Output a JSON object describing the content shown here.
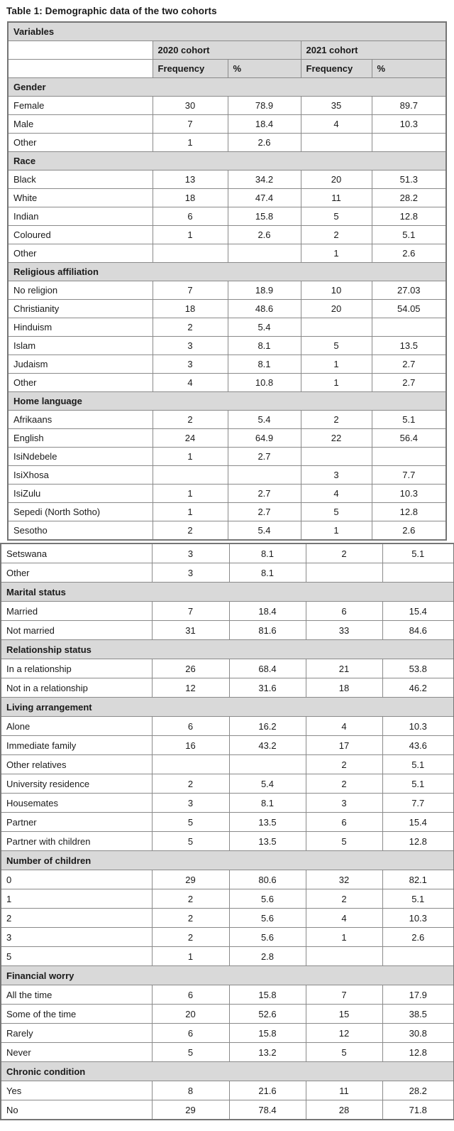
{
  "title": "Table 1: Demographic data of the two cohorts",
  "colors": {
    "section_fill": "#d9d9d9",
    "grid_border": "#8a8a8a",
    "text": "#1a1a1a"
  },
  "table": {
    "parts": [
      {
        "rows": [
          {
            "t": "section",
            "label": "Variables"
          },
          {
            "t": "cohorts",
            "cells": [
              "",
              "2020 cohort",
              "2021 cohort"
            ]
          },
          {
            "t": "stats",
            "cells": [
              "",
              "Frequency",
              "%",
              "Frequency",
              "%"
            ]
          },
          {
            "t": "section",
            "label": "Gender"
          },
          {
            "t": "data",
            "label": "Female",
            "values": [
              "30",
              "78.9",
              "35",
              "89.7"
            ]
          },
          {
            "t": "data",
            "label": "Male",
            "values": [
              "7",
              "18.4",
              "4",
              "10.3"
            ]
          },
          {
            "t": "data",
            "label": "Other",
            "values": [
              "1",
              "2.6",
              "",
              ""
            ]
          },
          {
            "t": "section",
            "label": "Race"
          },
          {
            "t": "data",
            "label": "Black",
            "values": [
              "13",
              "34.2",
              "20",
              "51.3"
            ]
          },
          {
            "t": "data",
            "label": "White",
            "values": [
              "18",
              "47.4",
              "11",
              "28.2"
            ]
          },
          {
            "t": "data",
            "label": "Indian",
            "values": [
              "6",
              "15.8",
              "5",
              "12.8"
            ]
          },
          {
            "t": "data",
            "label": "Coloured",
            "values": [
              "1",
              "2.6",
              "2",
              "5.1"
            ]
          },
          {
            "t": "data",
            "label": "Other",
            "values": [
              "",
              "",
              "1",
              "2.6"
            ]
          },
          {
            "t": "section",
            "label": "Religious affiliation"
          },
          {
            "t": "data",
            "label": "No religion",
            "values": [
              "7",
              "18.9",
              "10",
              "27.03"
            ]
          },
          {
            "t": "data",
            "label": "Christianity",
            "values": [
              "18",
              "48.6",
              "20",
              "54.05"
            ]
          },
          {
            "t": "data",
            "label": "Hinduism",
            "values": [
              "2",
              "5.4",
              "",
              ""
            ]
          },
          {
            "t": "data",
            "label": "Islam",
            "values": [
              "3",
              "8.1",
              "5",
              "13.5"
            ]
          },
          {
            "t": "data",
            "label": "Judaism",
            "values": [
              "3",
              "8.1",
              "1",
              "2.7"
            ]
          },
          {
            "t": "data",
            "label": "Other",
            "values": [
              "4",
              "10.8",
              "1",
              "2.7"
            ]
          },
          {
            "t": "section",
            "label": "Home language"
          },
          {
            "t": "data",
            "label": "Afrikaans",
            "values": [
              "2",
              "5.4",
              "2",
              "5.1"
            ]
          },
          {
            "t": "data",
            "label": "English",
            "values": [
              "24",
              "64.9",
              "22",
              "56.4"
            ]
          },
          {
            "t": "data",
            "label": "IsiNdebele",
            "values": [
              "1",
              "2.7",
              "",
              ""
            ]
          },
          {
            "t": "data",
            "label": "IsiXhosa",
            "values": [
              "",
              "",
              "3",
              "7.7"
            ]
          },
          {
            "t": "data",
            "label": "IsiZulu",
            "values": [
              "1",
              "2.7",
              "4",
              "10.3"
            ]
          },
          {
            "t": "data",
            "label": "Sepedi (North Sotho)",
            "values": [
              "1",
              "2.7",
              "5",
              "12.8"
            ]
          },
          {
            "t": "data",
            "label": "Sesotho",
            "values": [
              "2",
              "5.4",
              "1",
              "2.6"
            ]
          }
        ]
      },
      {
        "rows": [
          {
            "t": "data",
            "label": "Setswana",
            "values": [
              "3",
              "8.1",
              "2",
              "5.1"
            ]
          },
          {
            "t": "data",
            "label": "Other",
            "values": [
              "3",
              "8.1",
              "",
              ""
            ]
          },
          {
            "t": "section",
            "label": "Marital status"
          },
          {
            "t": "data",
            "label": "Married",
            "values": [
              "7",
              "18.4",
              "6",
              "15.4"
            ]
          },
          {
            "t": "data",
            "label": "Not married",
            "values": [
              "31",
              "81.6",
              "33",
              "84.6"
            ]
          },
          {
            "t": "section",
            "label": "Relationship status"
          },
          {
            "t": "data",
            "label": "In a relationship",
            "values": [
              "26",
              "68.4",
              "21",
              "53.8"
            ]
          },
          {
            "t": "data",
            "label": "Not in a relationship",
            "values": [
              "12",
              "31.6",
              "18",
              "46.2"
            ]
          },
          {
            "t": "section",
            "label": "Living arrangement"
          },
          {
            "t": "data",
            "label": "Alone",
            "values": [
              "6",
              "16.2",
              "4",
              "10.3"
            ]
          },
          {
            "t": "data",
            "label": "Immediate family",
            "values": [
              "16",
              "43.2",
              "17",
              "43.6"
            ]
          },
          {
            "t": "data",
            "label": "Other relatives",
            "values": [
              "",
              "",
              "2",
              "5.1"
            ]
          },
          {
            "t": "data",
            "label": "University residence",
            "values": [
              "2",
              "5.4",
              "2",
              "5.1"
            ]
          },
          {
            "t": "data",
            "label": "Housemates",
            "values": [
              "3",
              "8.1",
              "3",
              "7.7"
            ]
          },
          {
            "t": "data",
            "label": "Partner",
            "values": [
              "5",
              "13.5",
              "6",
              "15.4"
            ]
          },
          {
            "t": "data",
            "label": "Partner with children",
            "values": [
              "5",
              "13.5",
              "5",
              "12.8"
            ]
          },
          {
            "t": "section",
            "label": "Number of children"
          },
          {
            "t": "data",
            "label": "0",
            "values": [
              "29",
              "80.6",
              "32",
              "82.1"
            ]
          },
          {
            "t": "data",
            "label": "1",
            "values": [
              "2",
              "5.6",
              "2",
              "5.1"
            ]
          },
          {
            "t": "data",
            "label": "2",
            "values": [
              "2",
              "5.6",
              "4",
              "10.3"
            ]
          },
          {
            "t": "data",
            "label": "3",
            "values": [
              "2",
              "5.6",
              "1",
              "2.6"
            ]
          },
          {
            "t": "data",
            "label": "5",
            "values": [
              "1",
              "2.8",
              "",
              ""
            ]
          },
          {
            "t": "section",
            "label": "Financial worry"
          },
          {
            "t": "data",
            "label": "All the time",
            "values": [
              "6",
              "15.8",
              "7",
              "17.9"
            ]
          },
          {
            "t": "data",
            "label": "Some of the time",
            "values": [
              "20",
              "52.6",
              "15",
              "38.5"
            ]
          },
          {
            "t": "data",
            "label": "Rarely",
            "values": [
              "6",
              "15.8",
              "12",
              "30.8"
            ]
          },
          {
            "t": "data",
            "label": "Never",
            "values": [
              "5",
              "13.2",
              "5",
              "12.8"
            ]
          },
          {
            "t": "section",
            "label": "Chronic condition"
          },
          {
            "t": "data",
            "label": "Yes",
            "values": [
              "8",
              "21.6",
              "11",
              "28.2"
            ]
          },
          {
            "t": "data",
            "label": "No",
            "values": [
              "29",
              "78.4",
              "28",
              "71.8"
            ]
          }
        ]
      }
    ]
  }
}
